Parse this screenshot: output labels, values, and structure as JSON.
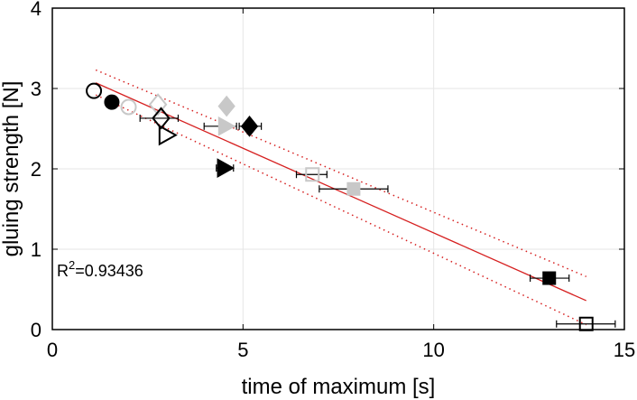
{
  "chart_data": {
    "type": "scatter",
    "title": "",
    "xlabel": "time of maximum [s]",
    "ylabel": "gluing strength [N]",
    "xlim": [
      0,
      15
    ],
    "ylim": [
      0,
      4
    ],
    "xticks": [
      0,
      5,
      10,
      15
    ],
    "yticks": [
      0,
      1,
      2,
      3,
      4
    ],
    "grid": true,
    "legend": null,
    "annotation": {
      "text": "R",
      "sup": "2",
      "rest": "=0.93436",
      "full": "R^2=0.93436"
    },
    "colors": {
      "fit": "#d62020",
      "black": "#000000",
      "gray": "#c8c8c8",
      "grid": "#e6e6e6"
    },
    "points": [
      {
        "marker": "circle",
        "fill": "open",
        "color": "black",
        "x": 1.09,
        "y": 2.97
      },
      {
        "marker": "circle",
        "fill": "filled",
        "color": "black",
        "x": 1.56,
        "y": 2.83
      },
      {
        "marker": "circle",
        "fill": "open",
        "color": "gray",
        "x": 2.0,
        "y": 2.77
      },
      {
        "marker": "diamond",
        "fill": "open",
        "color": "gray",
        "x": 2.77,
        "y": 2.8
      },
      {
        "marker": "diamond",
        "fill": "open",
        "color": "black",
        "x": 2.85,
        "y": 2.63,
        "xerr": [
          2.3,
          3.3
        ]
      },
      {
        "marker": "triangle-right",
        "fill": "open",
        "color": "black",
        "x": 3.0,
        "y": 2.42
      },
      {
        "marker": "diamond",
        "fill": "filled",
        "color": "gray",
        "x": 4.57,
        "y": 2.78
      },
      {
        "marker": "triangle-right",
        "fill": "filled",
        "color": "gray",
        "x": 4.55,
        "y": 2.53,
        "xerr": [
          3.98,
          4.83
        ]
      },
      {
        "marker": "diamond",
        "fill": "filled",
        "color": "black",
        "x": 5.17,
        "y": 2.53,
        "xerr": [
          4.9,
          5.48
        ]
      },
      {
        "marker": "triangle-right",
        "fill": "filled",
        "color": "black",
        "x": 4.52,
        "y": 2.01,
        "xerr": [
          4.3,
          4.75
        ]
      },
      {
        "marker": "square",
        "fill": "open",
        "color": "gray",
        "x": 6.82,
        "y": 1.93,
        "xerr": [
          6.4,
          7.2
        ]
      },
      {
        "marker": "square",
        "fill": "filled",
        "color": "gray",
        "x": 7.9,
        "y": 1.75,
        "xerr": [
          7.0,
          8.8
        ]
      },
      {
        "marker": "square",
        "fill": "filled",
        "color": "black",
        "x": 13.03,
        "y": 0.64,
        "xerr": [
          12.53,
          13.55
        ]
      },
      {
        "marker": "square",
        "fill": "open",
        "color": "black",
        "x": 14.0,
        "y": 0.07,
        "xerr": [
          13.22,
          14.76
        ]
      }
    ],
    "fit_line": {
      "x": [
        1.14,
        14.0
      ],
      "y": [
        3.07,
        0.36
      ]
    },
    "confidence_upper": {
      "x": [
        1.14,
        14.0
      ],
      "y": [
        3.23,
        0.66
      ]
    },
    "confidence_lower": {
      "x": [
        1.14,
        14.0
      ],
      "y": [
        2.92,
        0.06
      ]
    }
  }
}
